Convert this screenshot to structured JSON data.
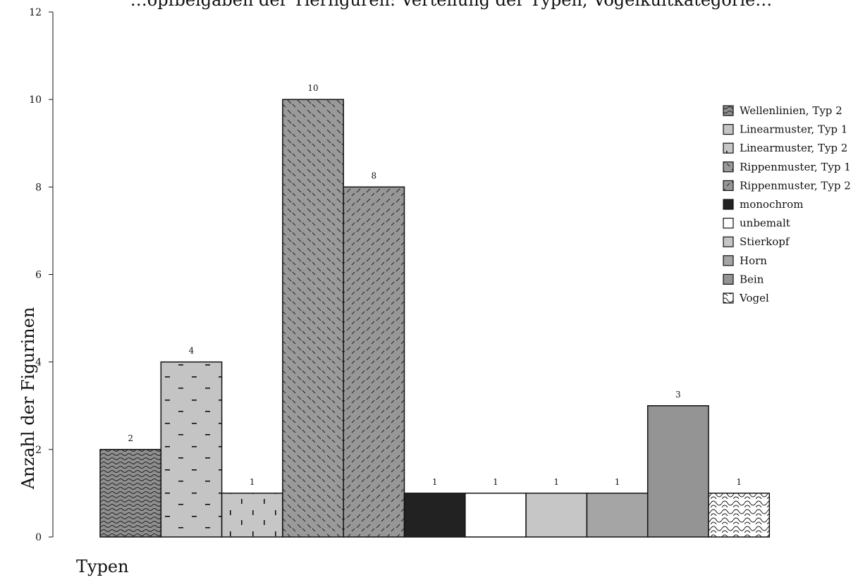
{
  "chart_data": {
    "type": "bar",
    "title": "…opfbeigaben der Tierfiguren: Verteilung der Typen, Vogelkultkategorie…",
    "xlabel": "Typen",
    "ylabel": "Anzahl der Figurinen",
    "ylim": [
      0,
      12
    ],
    "yticks": [
      0,
      2,
      4,
      6,
      8,
      10,
      12
    ],
    "grid": false,
    "legend_position": "right",
    "categories": [
      "Wellenlinien, Typ 2",
      "Linearmuster, Typ 1",
      "Linearmuster, Typ 2",
      "Rippenmuster, Typ 1",
      "Rippenmuster, Typ 2",
      "monochrom",
      "unbemalt",
      "Stierkopf",
      "Horn",
      "Bein",
      "Vogel"
    ],
    "values": [
      2,
      4,
      1,
      10,
      8,
      1,
      1,
      1,
      1,
      3,
      1
    ],
    "data_labels": [
      "2",
      "4",
      "1",
      "10",
      "8",
      "1",
      "1",
      "1",
      "1",
      "3",
      "1"
    ],
    "legend": [
      "Wellenlinien, Typ 2",
      "Linearmuster, Typ 1",
      "Linearmuster, Typ 2",
      "Rippenmuster, Typ 1",
      "Rippenmuster, Typ 2",
      "monochrom",
      "unbemalt",
      "Stierkopf",
      "Horn",
      "Bein",
      "Vogel"
    ],
    "patterns": [
      "wave",
      "dash-h",
      "dash-v",
      "hatch-back",
      "hatch-fwd",
      "solid",
      "solid",
      "solid",
      "solid",
      "solid",
      "scale"
    ],
    "colors": [
      "#8f8f8f",
      "#c4c4c4",
      "#c6c6c6",
      "#9a9a9a",
      "#979797",
      "#222222",
      "#ffffff",
      "#c6c6c6",
      "#a5a5a5",
      "#949494",
      "#ffffff"
    ]
  }
}
